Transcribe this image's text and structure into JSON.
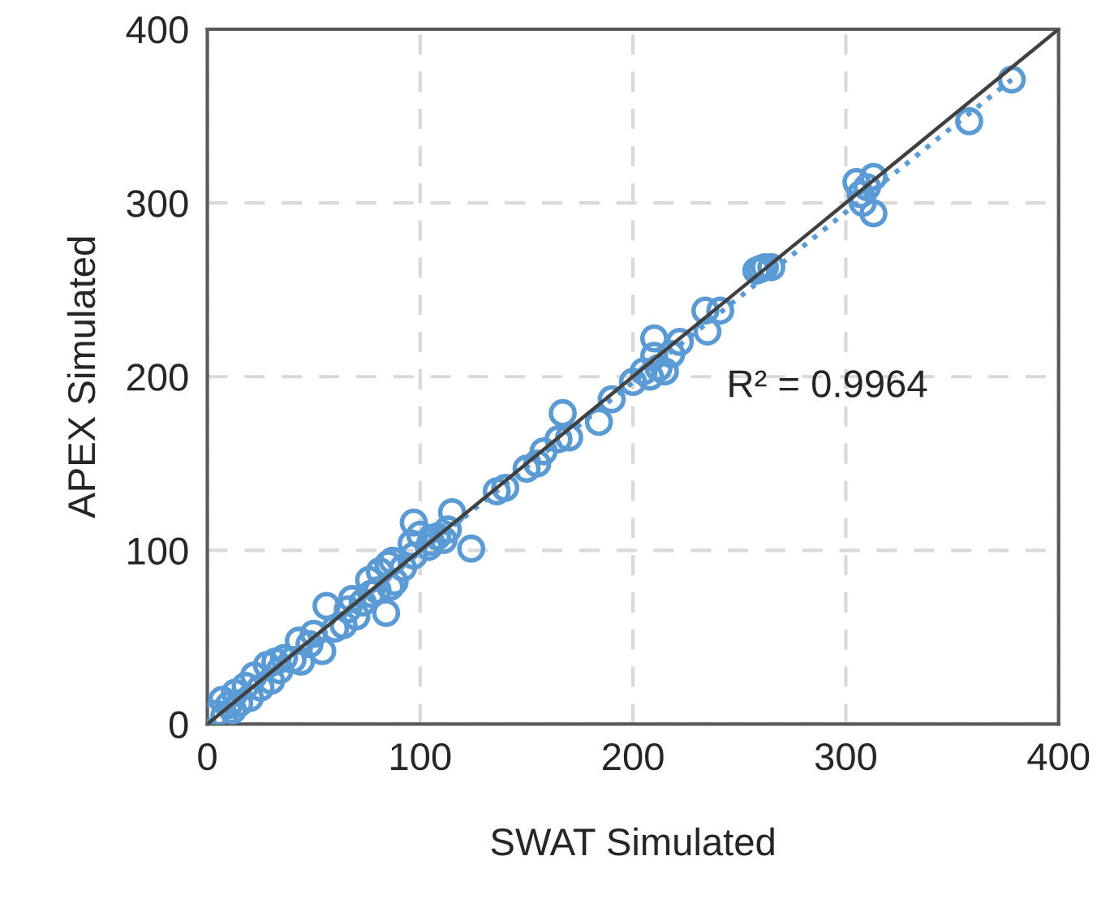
{
  "chart_data": {
    "type": "scatter",
    "xlabel": "SWAT Simulated",
    "ylabel": "APEX Simulated",
    "xlim": [
      0,
      400
    ],
    "ylim": [
      0,
      400
    ],
    "xticks": [
      0,
      100,
      200,
      300,
      400
    ],
    "yticks": [
      0,
      100,
      200,
      300,
      400
    ],
    "grid": true,
    "legend": false,
    "annotations": [
      "R² = 0.9964"
    ],
    "series": [
      {
        "color": "#5b9bd5",
        "marker": "circle",
        "x": [
          378,
          358,
          305,
          308,
          313,
          313,
          307,
          310,
          258,
          262,
          265,
          260,
          241,
          234,
          235,
          222,
          218,
          215,
          210,
          210,
          208,
          205,
          212,
          200,
          190,
          184,
          170,
          167,
          165,
          158,
          155,
          150,
          140,
          136,
          124,
          115,
          113,
          111,
          108,
          105,
          104,
          100,
          97,
          96,
          97,
          92,
          88,
          87,
          86,
          85,
          84,
          81,
          80,
          77,
          76,
          73,
          70,
          68,
          66,
          64,
          60,
          56,
          54,
          50,
          48,
          44,
          43,
          40,
          36,
          34,
          32,
          30,
          28,
          25,
          22,
          20,
          18,
          15,
          13,
          12,
          10,
          8,
          7,
          4
        ],
        "values": [
          371,
          347,
          312,
          300,
          315,
          294,
          305,
          309,
          261,
          263,
          263,
          262,
          238,
          238,
          226,
          220,
          213,
          203,
          222,
          212,
          200,
          203,
          205,
          197,
          187,
          174,
          165,
          179,
          164,
          157,
          150,
          147,
          136,
          134,
          101,
          122,
          112,
          106,
          108,
          105,
          102,
          109,
          116,
          104,
          97,
          90,
          82,
          94,
          79,
          92,
          64,
          88,
          77,
          75,
          83,
          70,
          62,
          72,
          66,
          57,
          55,
          68,
          42,
          52,
          46,
          36,
          48,
          37,
          38,
          31,
          36,
          25,
          34,
          21,
          28,
          15,
          22,
          12,
          18,
          8,
          11,
          5,
          14,
          6
        ]
      },
      {
        "type": "line",
        "color": "#5b9bd5",
        "line_style": "dotted",
        "x": [
          0,
          378
        ],
        "values": [
          1,
          371
        ]
      },
      {
        "type": "line",
        "color": "#404040",
        "line_style": "solid",
        "x": [
          0,
          400
        ],
        "values": [
          0,
          400
        ]
      }
    ]
  }
}
